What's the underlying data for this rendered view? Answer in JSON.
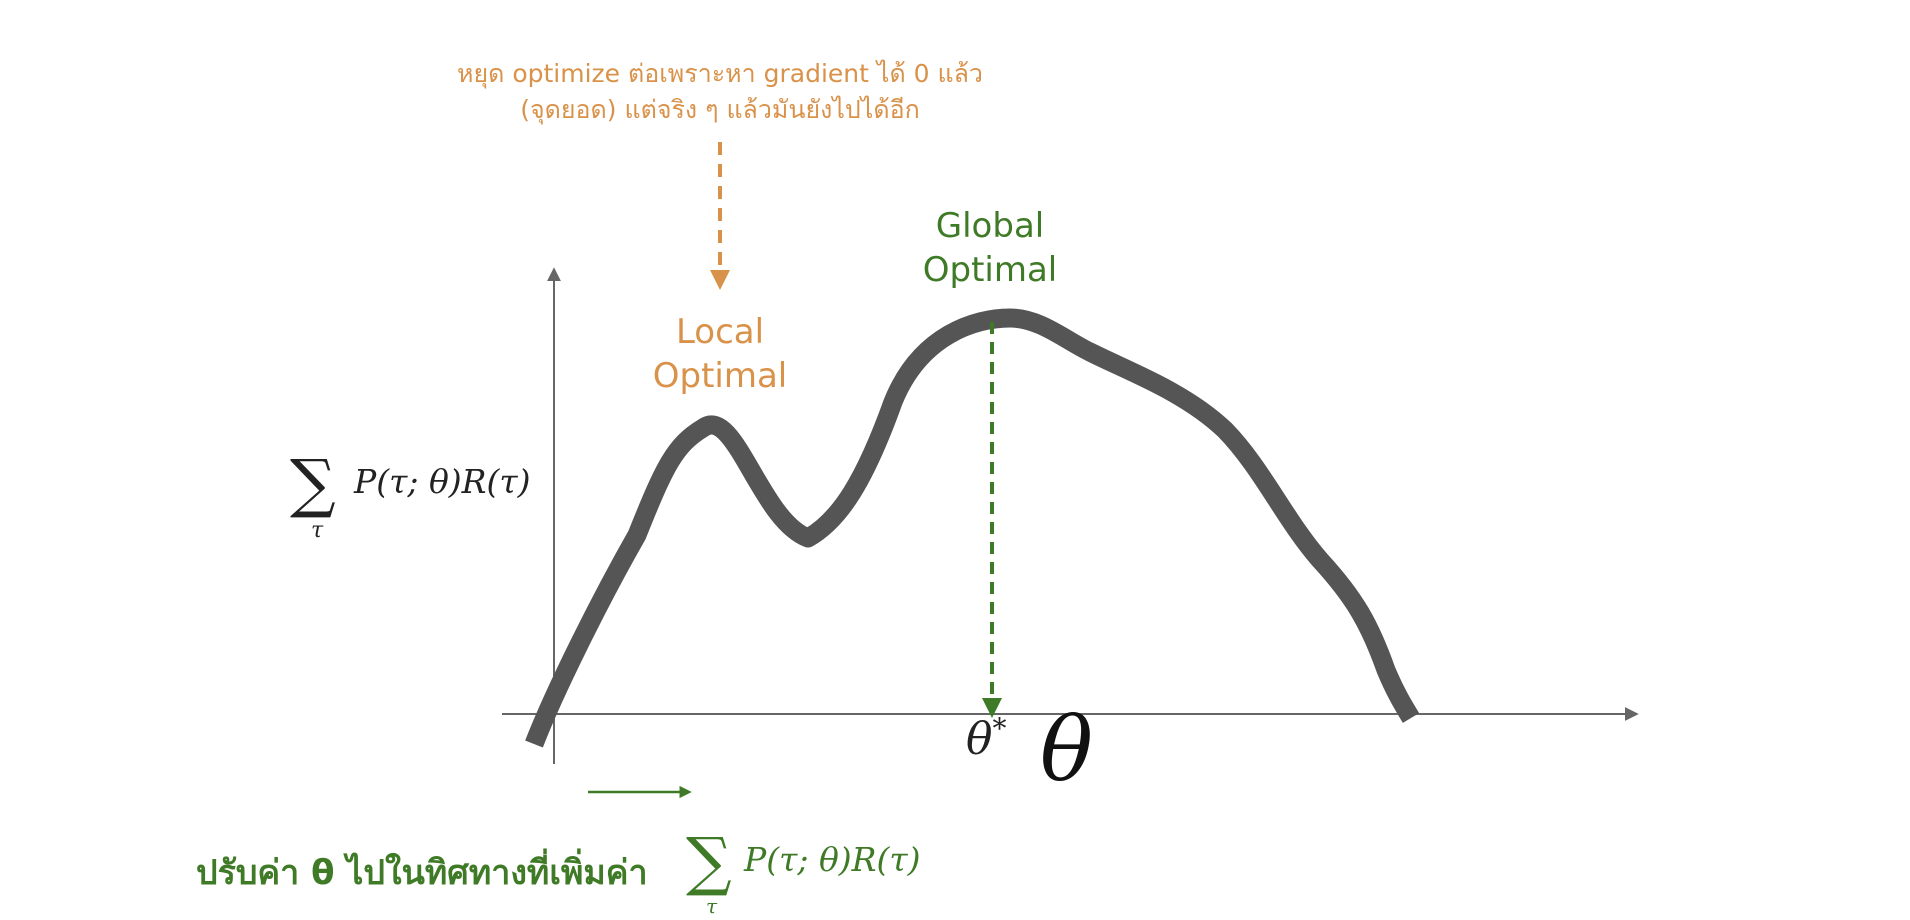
{
  "annotation": {
    "line1": "หยุด optimize ต่อเพราะหา gradient ได้ 0 แล้ว",
    "line2": "(จุดยอด) แต่จริง ๆ แล้วมันยังไปได้อีก"
  },
  "labels": {
    "local_line1": "Local",
    "local_line2": "Optimal",
    "global_line1": "Global",
    "global_line2": "Optimal"
  },
  "axes": {
    "y_label_sigma": "∑",
    "y_label_sub": "τ",
    "y_label_expr": "P(τ; θ)R(τ)",
    "x_label": "θ",
    "optimum_base": "θ",
    "optimum_sup": "*"
  },
  "caption": {
    "text": "ปรับค่า θ ไปในทิศทางที่เพิ่มค่า",
    "sigma": "∑",
    "sub": "τ",
    "expr": "P(τ; θ)R(τ)"
  },
  "colors": {
    "orange": "#d9924a",
    "green": "#3f7a26",
    "curve": "#555555",
    "axis": "#666666"
  }
}
